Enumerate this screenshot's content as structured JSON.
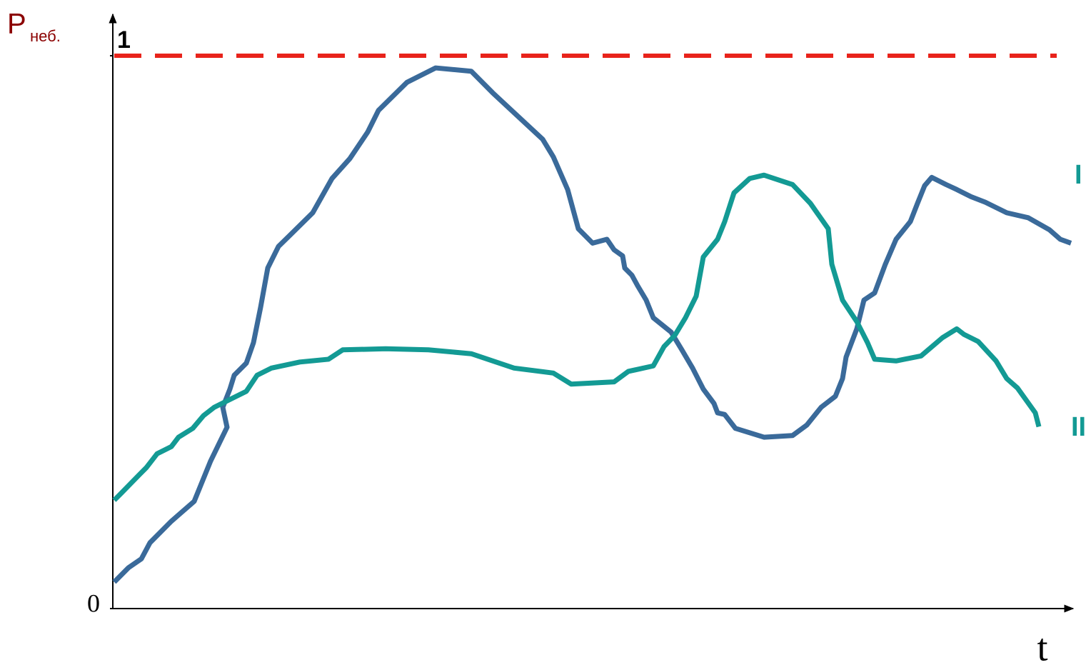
{
  "chart_data": {
    "type": "line",
    "y_label": "P",
    "y_label_sub": "неб.",
    "x_label": "t",
    "xlim": [
      0,
      1347
    ],
    "ylim": [
      0,
      1.075
    ],
    "yticks": [
      0,
      1
    ],
    "reference_line": {
      "value": 1,
      "color": "#e8231b"
    },
    "label_color": "#139a94",
    "series": [
      {
        "name": "I",
        "color": "#3a6a9a",
        "x": [
          2,
          22,
          40,
          52,
          82,
          114,
          137,
          160,
          154,
          164,
          170,
          187,
          197,
          207,
          217,
          232,
          247,
          280,
          307,
          332,
          357,
          372,
          412,
          452,
          502,
          532,
          562,
          602,
          617,
          637,
          652,
          672,
          692,
          702,
          714,
          717,
          727,
          735,
          747,
          757,
          782,
          797,
          812,
          827,
          842,
          847,
          857,
          872,
          912,
          952,
          972,
          992,
          1012,
          1022,
          1027,
          1042,
          1052,
          1067,
          1082,
          1097,
          1117,
          1127,
          1137,
          1147,
          1167,
          1182,
          1202,
          1222,
          1252,
          1282,
          1312,
          1327,
          1342
        ],
        "values": [
          0.048,
          0.074,
          0.09,
          0.119,
          0.158,
          0.194,
          0.267,
          0.328,
          0.364,
          0.397,
          0.422,
          0.444,
          0.481,
          0.545,
          0.616,
          0.655,
          0.674,
          0.716,
          0.778,
          0.814,
          0.862,
          0.901,
          0.952,
          0.978,
          0.972,
          0.933,
          0.897,
          0.849,
          0.817,
          0.758,
          0.687,
          0.661,
          0.668,
          0.649,
          0.638,
          0.616,
          0.603,
          0.584,
          0.558,
          0.526,
          0.5,
          0.468,
          0.435,
          0.397,
          0.371,
          0.354,
          0.351,
          0.326,
          0.31,
          0.313,
          0.332,
          0.364,
          0.384,
          0.416,
          0.455,
          0.506,
          0.558,
          0.571,
          0.623,
          0.668,
          0.7,
          0.733,
          0.765,
          0.78,
          0.767,
          0.758,
          0.745,
          0.735,
          0.716,
          0.707,
          0.685,
          0.668,
          0.661
        ]
      },
      {
        "name": "II",
        "color": "#139a94",
        "x": [
          2,
          12,
          37,
          47,
          62,
          82,
          92,
          112,
          127,
          142,
          162,
          187,
          202,
          222,
          262,
          302,
          322,
          382,
          442,
          502,
          562,
          617,
          642,
          702,
          722,
          757,
          772,
          787,
          802,
          817,
          827,
          847,
          857,
          870,
          892,
          912,
          952,
          977,
          1002,
          1007,
          1022,
          1042,
          1057,
          1067,
          1097,
          1132,
          1162,
          1182,
          1192,
          1212,
          1237,
          1252,
          1267,
          1292,
          1297
        ],
        "values": [
          0.196,
          0.209,
          0.242,
          0.255,
          0.28,
          0.293,
          0.31,
          0.326,
          0.349,
          0.364,
          0.377,
          0.393,
          0.422,
          0.435,
          0.446,
          0.451,
          0.468,
          0.47,
          0.468,
          0.461,
          0.435,
          0.426,
          0.406,
          0.41,
          0.429,
          0.439,
          0.474,
          0.494,
          0.526,
          0.565,
          0.636,
          0.668,
          0.7,
          0.752,
          0.778,
          0.784,
          0.767,
          0.733,
          0.687,
          0.623,
          0.558,
          0.519,
          0.481,
          0.451,
          0.448,
          0.457,
          0.49,
          0.506,
          0.496,
          0.483,
          0.448,
          0.416,
          0.399,
          0.354,
          0.329
        ]
      }
    ]
  }
}
